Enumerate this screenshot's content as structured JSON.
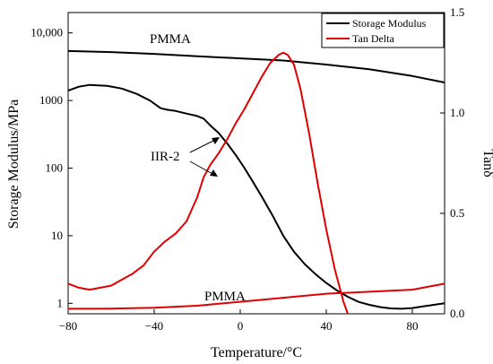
{
  "chart_data": {
    "type": "line",
    "title": "",
    "xlabel": "Temperature/°C",
    "ylabel_left": "Storage Modulus/MPa",
    "ylabel_right": "Tanδ",
    "xlim": [
      -80,
      95
    ],
    "ylim_left": [
      0.7,
      20000
    ],
    "ylim_right": [
      0,
      1.5
    ],
    "left_scale": "log",
    "grid": false,
    "legend_position": "top-right",
    "x_ticks": [
      -80,
      -40,
      0,
      40,
      80
    ],
    "x_tick_labels": [
      "−80",
      "−40",
      "0",
      "40",
      "80"
    ],
    "y_left_ticks": [
      1,
      10,
      100,
      1000,
      10000
    ],
    "y_left_tick_labels": [
      "1",
      "10",
      "100",
      "1000",
      "10,000"
    ],
    "y_right_ticks": [
      0,
      0.5,
      1.0,
      1.5
    ],
    "y_right_tick_labels": [
      "0.0",
      "0.5",
      "1.0",
      "1.5"
    ],
    "legend": [
      {
        "label": "Storage Modulus",
        "color": "#000000"
      },
      {
        "label": "Tan Delta",
        "color": "#e00000"
      }
    ],
    "annotations": [
      {
        "text": "PMMA",
        "x": -55,
        "y": 9000,
        "axis": "left"
      },
      {
        "text": "IIR-2",
        "x": -45,
        "y": 130,
        "axis": "left"
      },
      {
        "text": "PMMA",
        "x": 0,
        "y": 0.12,
        "axis": "right"
      }
    ],
    "series": [
      {
        "name": "Storage Modulus",
        "axis": "left",
        "color": "#000000",
        "x": [
          -80,
          -60,
          -40,
          -20,
          0,
          20,
          40,
          60,
          80,
          95
        ],
        "y": [
          5400,
          5200,
          4900,
          4500,
          4200,
          3900,
          3400,
          2900,
          2300,
          1850
        ]
      },
      {
        "name": "Storage Modulus",
        "axis": "left",
        "color": "#000000",
        "x": [
          -80,
          -75,
          -70,
          -62,
          -55,
          -48,
          -42,
          -37,
          -34,
          -30,
          -25,
          -20,
          -17,
          -14,
          -10,
          -6,
          -2,
          2,
          6,
          10,
          15,
          20,
          25,
          30,
          35,
          40,
          45,
          50,
          55,
          60,
          65,
          70,
          75,
          80,
          85,
          90,
          95
        ],
        "y": [
          1400,
          1600,
          1700,
          1650,
          1500,
          1250,
          1000,
          770,
          730,
          700,
          640,
          590,
          540,
          430,
          330,
          230,
          155,
          100,
          62,
          38,
          20,
          10,
          5.8,
          3.8,
          2.7,
          2.0,
          1.55,
          1.25,
          1.05,
          0.95,
          0.88,
          0.84,
          0.83,
          0.85,
          0.9,
          0.95,
          1.0
        ]
      },
      {
        "name": "Tan Delta",
        "axis": "right",
        "color": "#e00000",
        "x": [
          -80,
          -75,
          -70,
          -65,
          -60,
          -55,
          -50,
          -45,
          -40,
          -35,
          -30,
          -25,
          -20,
          -17,
          -14,
          -10,
          -6,
          -2,
          2,
          6,
          10,
          14,
          18,
          20,
          22,
          25,
          28,
          32,
          36,
          40,
          44,
          48,
          50
        ],
        "y": [
          0.15,
          0.13,
          0.12,
          0.13,
          0.14,
          0.17,
          0.2,
          0.24,
          0.31,
          0.36,
          0.4,
          0.46,
          0.58,
          0.68,
          0.74,
          0.8,
          0.87,
          0.95,
          1.02,
          1.1,
          1.18,
          1.25,
          1.29,
          1.3,
          1.29,
          1.24,
          1.12,
          0.9,
          0.65,
          0.42,
          0.22,
          0.06,
          0.0
        ]
      },
      {
        "name": "Tan Delta",
        "axis": "right",
        "color": "#e00000",
        "x": [
          -80,
          -60,
          -40,
          -20,
          0,
          20,
          40,
          60,
          80,
          95
        ],
        "y": [
          0.025,
          0.026,
          0.03,
          0.04,
          0.06,
          0.08,
          0.1,
          0.11,
          0.12,
          0.15
        ]
      }
    ]
  }
}
